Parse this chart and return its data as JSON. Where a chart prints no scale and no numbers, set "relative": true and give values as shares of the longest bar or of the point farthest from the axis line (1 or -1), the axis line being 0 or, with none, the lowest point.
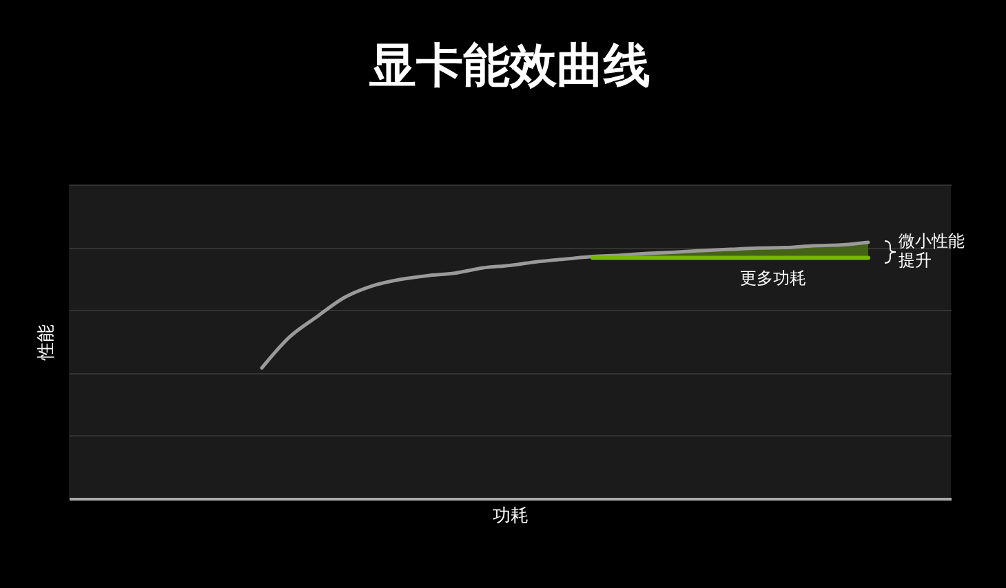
{
  "chart_data": {
    "type": "line",
    "title": "显卡能效曲线",
    "xlabel": "功耗",
    "ylabel": "性能",
    "relative": true,
    "grid": "y",
    "categories": [
      null,
      null,
      null,
      null,
      null,
      null,
      null,
      null,
      null,
      null,
      null,
      null,
      null,
      null,
      null,
      null,
      null,
      null,
      null,
      null,
      null,
      null,
      null,
      null,
      null,
      null,
      null,
      null,
      null,
      null,
      null,
      null,
      null
    ],
    "series": [
      {
        "color": "#9a9a9a",
        "values": [
          null,
          null,
          null,
          null,
          null,
          null,
          null,
          0.51,
          0.63,
          0.71,
          0.785,
          0.83,
          0.855,
          0.87,
          0.88,
          0.9,
          0.91,
          0.925,
          0.935,
          0.945,
          0.95,
          0.957,
          0.962,
          0.968,
          0.973,
          0.978,
          0.98,
          0.987,
          0.99,
          1.0,
          null,
          null,
          null
        ]
      },
      {
        "color": "#76b900",
        "values": [
          null,
          null,
          null,
          null,
          null,
          null,
          null,
          null,
          null,
          null,
          null,
          null,
          null,
          null,
          null,
          null,
          null,
          null,
          null,
          0.94,
          0.94,
          0.94,
          0.94,
          0.94,
          0.94,
          0.94,
          0.94,
          0.94,
          0.94,
          0.94,
          null,
          null,
          null
        ],
        "lower": [
          null,
          null,
          null,
          null,
          null,
          null,
          null,
          null,
          null,
          null,
          null,
          null,
          null,
          null,
          null,
          null,
          null,
          null,
          null,
          0.94,
          0.94,
          0.94,
          0.94,
          0.94,
          0.94,
          0.94,
          0.94,
          0.94,
          0.94,
          0.94,
          null,
          null,
          null
        ],
        "upper": [
          null,
          null,
          null,
          null,
          null,
          null,
          null,
          null,
          null,
          null,
          null,
          null,
          null,
          null,
          null,
          null,
          null,
          null,
          null,
          0.945,
          0.95,
          0.957,
          0.962,
          0.968,
          0.973,
          0.978,
          0.98,
          0.987,
          0.99,
          1.0,
          null,
          null,
          null
        ]
      }
    ],
    "annotations": [
      "更多功耗",
      "微小性能提升"
    ]
  }
}
